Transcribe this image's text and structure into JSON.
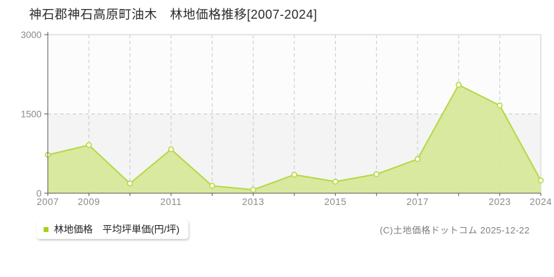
{
  "title": "神石郡神石高原町油木　林地価格推移[2007-2024]",
  "legend": {
    "label": "林地価格　平均坪単価(円/坪)",
    "marker_color": "#a2d411"
  },
  "footer": {
    "copyright": "(C)土地価格ドットコム 2025-12-22"
  },
  "chart_data": {
    "type": "area",
    "title": "神石郡神石高原町油木 林地価格推移[2007-2024]",
    "series": [
      {
        "name": "林地価格 平均坪単価(円/坪)",
        "line_color": "#b5d843",
        "fill_color": "#d7e89b",
        "marker_fill": "#fffef6",
        "values": [
          725,
          910,
          185,
          830,
          140,
          65,
          350,
          220,
          360,
          645,
          2050,
          1660,
          240
        ]
      }
    ],
    "x_slots": 13,
    "x_tick_labels": [
      {
        "slot": 0,
        "label": "2007"
      },
      {
        "slot": 1,
        "label": "2009"
      },
      {
        "slot": 3,
        "label": "2011"
      },
      {
        "slot": 5,
        "label": "2013"
      },
      {
        "slot": 7,
        "label": "2015"
      },
      {
        "slot": 9,
        "label": "2017"
      },
      {
        "slot": 11,
        "label": "2023"
      },
      {
        "slot": 12,
        "label": "2024"
      }
    ],
    "y_axis": {
      "ticks": [
        0,
        1500,
        3000
      ],
      "range": [
        0,
        3000
      ]
    },
    "grid": {
      "h_dashed_at": 1500,
      "v_dashed_slots": [
        1,
        2,
        3,
        4,
        5,
        6,
        7,
        8,
        9,
        10,
        11
      ],
      "band_lower_color": "#f4f4f4",
      "band_upper_color": "#fcfcfc",
      "dash_color": "#c7c7c7",
      "border_color": "#e4e4e4",
      "axis_color": "#555555",
      "tick_text_color": "#8a8a8a"
    },
    "legend_position": "bottom-left"
  }
}
